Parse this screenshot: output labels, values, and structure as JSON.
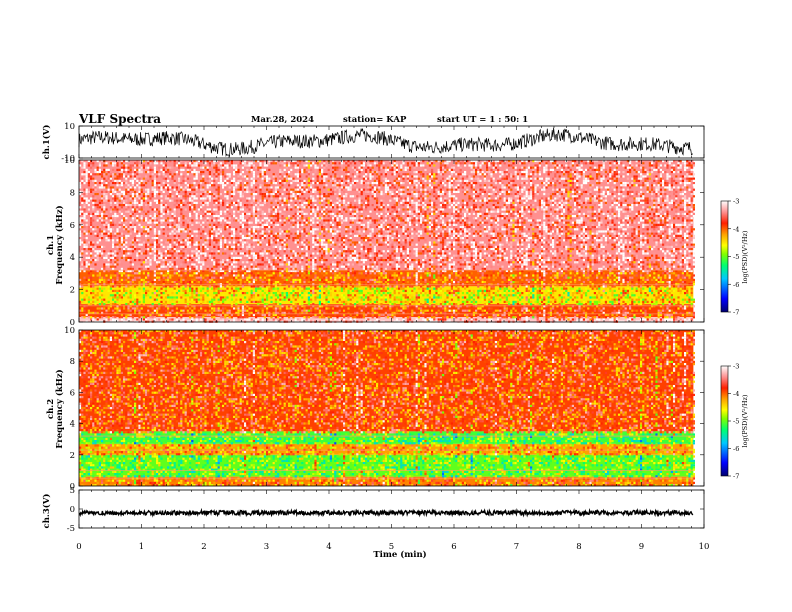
{
  "header": {
    "title": "VLF Spectra",
    "date": "Mar.28, 2024",
    "station": "station= KAP",
    "start": "start  UT =  1 : 50: 1"
  },
  "colors": {
    "spectrum_scale": [
      "#00008b",
      "#0000ff",
      "#00bfff",
      "#00ff7f",
      "#7fff00",
      "#ffff00",
      "#ffa500",
      "#ff3000",
      "#ff9a9a",
      "#ffffff"
    ]
  },
  "chart_data": [
    {
      "type": "line",
      "panel": "ch1-waveform",
      "ylabel": "ch.1(V)",
      "ylim": [
        -10,
        10
      ],
      "y_ticks": [
        "10",
        "-10"
      ],
      "x_range_min": [
        0,
        9.83
      ],
      "series": [
        {
          "description_level": "oscillating trace between about -8 and 8 V"
        }
      ]
    },
    {
      "type": "heatmap",
      "panel": "ch1-spectrogram",
      "ylabel_line1": "ch.1",
      "ylabel_line2": "Frequency (kHz)",
      "ylim": [
        0,
        10
      ],
      "y_ticks": [
        "0",
        "2",
        "4",
        "6",
        "8",
        "10"
      ],
      "x_range_min": [
        0,
        9.83
      ],
      "bands": [
        {
          "from_khz": 3.2,
          "to_khz": 10,
          "log_psd": -3.4
        },
        {
          "from_khz": 2.2,
          "to_khz": 3.2,
          "log_psd": -4.0
        },
        {
          "from_khz": 1.1,
          "to_khz": 2.2,
          "log_psd": -4.5
        },
        {
          "from_khz": 0.3,
          "to_khz": 1.1,
          "log_psd": -3.9
        },
        {
          "from_khz": 0,
          "to_khz": 0.3,
          "log_psd": -3.2
        }
      ],
      "colorbar": {
        "label": "log(PSD)(V²/Hz)",
        "ticks": [
          "-3",
          "-4",
          "-5",
          "-6",
          "-7"
        ],
        "range": [
          -7,
          -3
        ]
      }
    },
    {
      "type": "heatmap",
      "panel": "ch2-spectrogram",
      "ylabel_line1": "ch.2",
      "ylabel_line2": "Frequency (kHz)",
      "ylim": [
        0,
        10
      ],
      "y_ticks": [
        "0",
        "2",
        "4",
        "6",
        "8",
        "10"
      ],
      "x_range_min": [
        0,
        9.83
      ],
      "bands": [
        {
          "from_khz": 3.5,
          "to_khz": 10,
          "log_psd": -3.9
        },
        {
          "from_khz": 2.7,
          "to_khz": 3.5,
          "log_psd": -5.1
        },
        {
          "from_khz": 2.0,
          "to_khz": 2.7,
          "log_psd": -4.2
        },
        {
          "from_khz": 0.6,
          "to_khz": 2.0,
          "log_psd": -5.0
        },
        {
          "from_khz": 0,
          "to_khz": 0.6,
          "log_psd": -4.1
        }
      ],
      "colorbar": {
        "label": "log(PSD)(V²/Hz)",
        "ticks": [
          "-3",
          "-4",
          "-5",
          "-6",
          "-7"
        ],
        "range": [
          -7,
          -3
        ]
      }
    },
    {
      "type": "line",
      "panel": "ch3-waveform",
      "ylabel": "ch.3(V)",
      "ylim": [
        -5,
        5
      ],
      "y_ticks": [
        "5",
        "0",
        "-5"
      ],
      "x_range_min": [
        0,
        9.83
      ],
      "series": [
        {
          "description_level": "dense trace near -1 V"
        }
      ]
    }
  ],
  "xaxis": {
    "label": "Time (min)",
    "ticks": [
      "0",
      "1",
      "2",
      "3",
      "4",
      "5",
      "6",
      "7",
      "8",
      "9",
      "10"
    ],
    "range": [
      0,
      10
    ]
  }
}
